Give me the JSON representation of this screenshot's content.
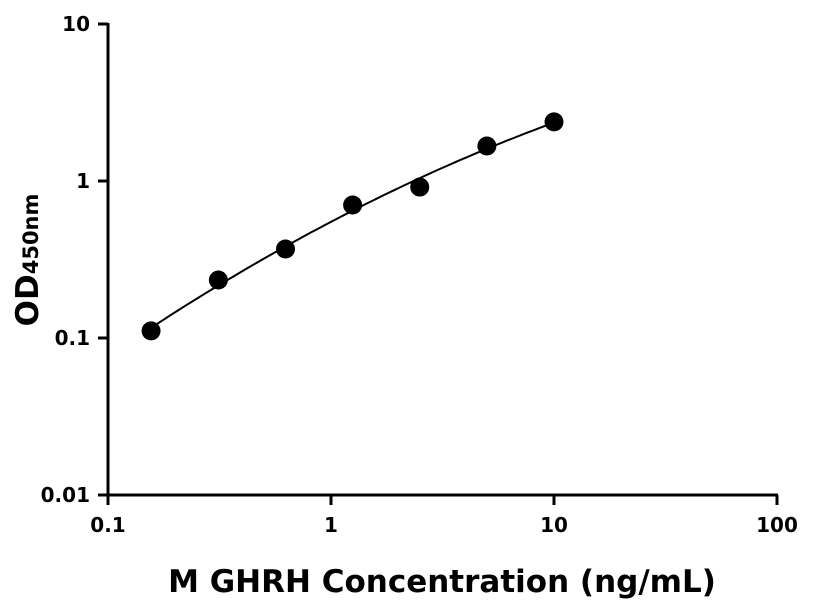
{
  "chart_data": {
    "type": "scatter",
    "title": "",
    "xlabel": "M GHRH Concentration (ng/mL)",
    "ylabel_main": "OD",
    "ylabel_sub": "450nm",
    "x_scale": "log",
    "y_scale": "log",
    "xlim": [
      0.1,
      100
    ],
    "ylim": [
      0.01,
      10
    ],
    "x_ticks": [
      0.1,
      1,
      10,
      100
    ],
    "x_tick_labels": [
      "0.1",
      "1",
      "10",
      "100"
    ],
    "y_ticks": [
      0.01,
      0.1,
      1,
      10
    ],
    "y_tick_labels": [
      "0.01",
      "0.1",
      "1",
      "10"
    ],
    "grid": false,
    "fit_curve": true,
    "marker_color": "#000000",
    "series": [
      {
        "x": [
          0.156,
          0.3125,
          0.625,
          1.25,
          2.5,
          5,
          10
        ],
        "y": [
          0.111,
          0.234,
          0.369,
          0.703,
          0.915,
          1.67,
          2.38
        ]
      }
    ]
  }
}
